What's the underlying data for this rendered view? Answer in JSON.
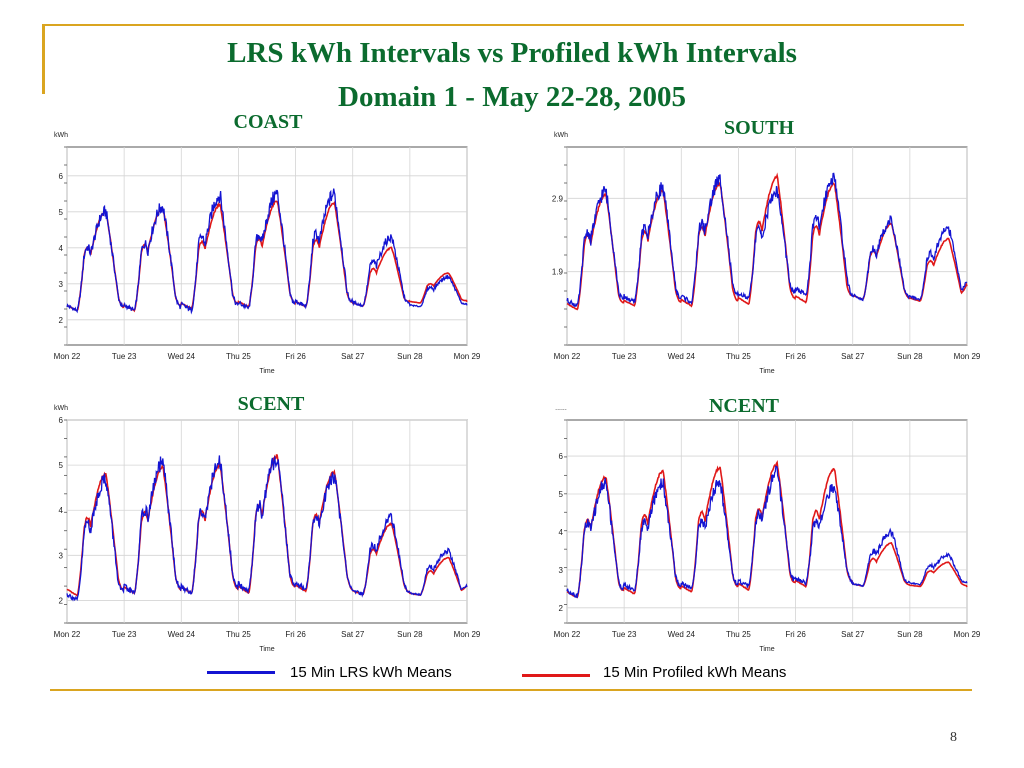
{
  "slide": {
    "title_line1": "LRS kWh Intervals vs Profiled kWh Intervals",
    "title_line2": "Domain 1 - May 22-28, 2005",
    "page_number": "8"
  },
  "legend": {
    "lrs_label": "15 Min LRS kWh Means",
    "profiled_label": "15 Min Profiled kWh Means",
    "lrs_color": "#1414D2",
    "profiled_color": "#E01818"
  },
  "chart_data": [
    {
      "type": "line",
      "region": "COAST",
      "ylabel": "kWh",
      "xlabel": "Time",
      "ylim": [
        1.3,
        6.8
      ],
      "yticks": [
        2,
        3,
        4,
        5,
        6
      ],
      "categories": [
        "Mon 22",
        "Tue 23",
        "Wed 24",
        "Thu 25",
        "Fri 26",
        "Sat 27",
        "Sun 28",
        "Mon 29"
      ],
      "grid": true,
      "days": [
        {
          "lrs_min": 2.2,
          "lrs_max": 5.0,
          "prof_min": 2.2,
          "prof_max": 5.0
        },
        {
          "lrs_min": 2.2,
          "lrs_max": 5.15,
          "prof_min": 2.2,
          "prof_max": 5.1
        },
        {
          "lrs_min": 2.2,
          "lrs_max": 5.45,
          "prof_min": 2.25,
          "prof_max": 5.2
        },
        {
          "lrs_min": 2.25,
          "lrs_max": 5.5,
          "prof_min": 2.3,
          "prof_max": 5.3
        },
        {
          "lrs_min": 2.3,
          "lrs_max": 5.5,
          "prof_min": 2.3,
          "prof_max": 5.25
        },
        {
          "lrs_min": 2.35,
          "lrs_max": 4.3,
          "prof_min": 2.35,
          "prof_max": 4.0
        },
        {
          "lrs_min": 2.35,
          "lrs_max": 3.2,
          "prof_min": 2.45,
          "prof_max": 3.3
        }
      ],
      "end": {
        "lrs": 2.4,
        "prof": 2.5
      }
    },
    {
      "type": "line",
      "region": "SOUTH",
      "ylabel": "kWh",
      "xlabel": "Time",
      "ylim": [
        0.9,
        3.6
      ],
      "yticks": [
        1.9,
        2.9
      ],
      "categories": [
        "Mon 22",
        "Tue 23",
        "Wed 24",
        "Thu 25",
        "Fri 26",
        "Sat 27",
        "Sun 28",
        "Mon 29"
      ],
      "grid": true,
      "days": [
        {
          "lrs_min": 1.4,
          "lrs_max": 3.0,
          "prof_min": 1.35,
          "prof_max": 2.95
        },
        {
          "lrs_min": 1.45,
          "lrs_max": 3.05,
          "prof_min": 1.4,
          "prof_max": 3.0
        },
        {
          "lrs_min": 1.45,
          "lrs_max": 3.15,
          "prof_min": 1.4,
          "prof_max": 3.1
        },
        {
          "lrs_min": 1.5,
          "lrs_max": 3.0,
          "prof_min": 1.42,
          "prof_max": 3.2
        },
        {
          "lrs_min": 1.55,
          "lrs_max": 3.2,
          "prof_min": 1.45,
          "prof_max": 3.1
        },
        {
          "lrs_min": 1.5,
          "lrs_max": 2.6,
          "prof_min": 1.5,
          "prof_max": 2.55
        },
        {
          "lrs_min": 1.5,
          "lrs_max": 2.5,
          "prof_min": 1.48,
          "prof_max": 2.35
        }
      ],
      "end": {
        "lrs": 1.75,
        "prof": 1.7
      }
    },
    {
      "type": "line",
      "region": "SCENT",
      "ylabel": "kWh",
      "xlabel": "Time",
      "ylim": [
        1.5,
        6.0
      ],
      "yticks": [
        2,
        3,
        4,
        5,
        6
      ],
      "categories": [
        "Mon 22",
        "Tue 23",
        "Wed 24",
        "Thu 25",
        "Fri 26",
        "Sat 27",
        "Sun 28",
        "Mon 29"
      ],
      "grid": true,
      "days": [
        {
          "lrs_min": 1.95,
          "lrs_max": 4.7,
          "prof_min": 2.05,
          "prof_max": 4.8
        },
        {
          "lrs_min": 2.1,
          "lrs_max": 5.05,
          "prof_min": 2.1,
          "prof_max": 4.95
        },
        {
          "lrs_min": 2.1,
          "lrs_max": 5.05,
          "prof_min": 2.1,
          "prof_max": 5.0
        },
        {
          "lrs_min": 2.15,
          "lrs_max": 5.15,
          "prof_min": 2.1,
          "prof_max": 5.2
        },
        {
          "lrs_min": 2.2,
          "lrs_max": 4.75,
          "prof_min": 2.15,
          "prof_max": 4.85
        },
        {
          "lrs_min": 2.1,
          "lrs_max": 3.85,
          "prof_min": 2.1,
          "prof_max": 3.7
        },
        {
          "lrs_min": 2.1,
          "lrs_max": 3.1,
          "prof_min": 2.1,
          "prof_max": 2.95
        }
      ],
      "end": {
        "lrs": 2.3,
        "prof": 2.3
      }
    },
    {
      "type": "line",
      "region": "NCENT",
      "ylabel": "......",
      "xlabel": "Time",
      "ylim": [
        1.6,
        6.95
      ],
      "yticks": [
        2,
        3,
        4,
        5,
        6
      ],
      "categories": [
        "Mon 22",
        "Tue 23",
        "Wed 24",
        "Thu 25",
        "Fri 26",
        "Sat 27",
        "Sun 28",
        "Mon 29"
      ],
      "grid": true,
      "days": [
        {
          "lrs_min": 2.25,
          "lrs_max": 5.3,
          "prof_min": 2.2,
          "prof_max": 5.45
        },
        {
          "lrs_min": 2.4,
          "lrs_max": 5.3,
          "prof_min": 2.3,
          "prof_max": 5.6
        },
        {
          "lrs_min": 2.45,
          "lrs_max": 5.3,
          "prof_min": 2.35,
          "prof_max": 5.7
        },
        {
          "lrs_min": 2.5,
          "lrs_max": 5.55,
          "prof_min": 2.4,
          "prof_max": 5.8
        },
        {
          "lrs_min": 2.6,
          "lrs_max": 5.2,
          "prof_min": 2.5,
          "prof_max": 5.65
        },
        {
          "lrs_min": 2.55,
          "lrs_max": 4.0,
          "prof_min": 2.55,
          "prof_max": 3.7
        },
        {
          "lrs_min": 2.6,
          "lrs_max": 3.4,
          "prof_min": 2.55,
          "prof_max": 3.2
        }
      ],
      "end": {
        "lrs": 2.65,
        "prof": 2.55
      }
    }
  ]
}
